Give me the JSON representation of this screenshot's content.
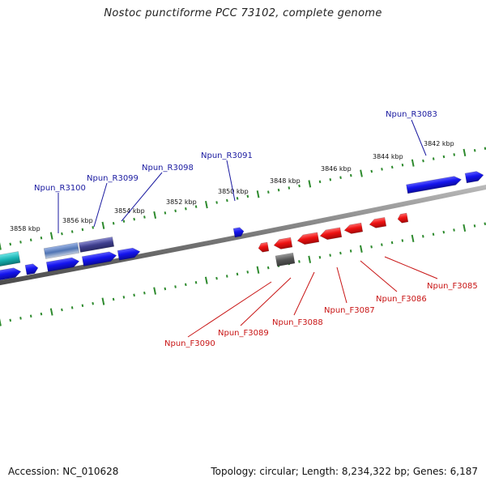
{
  "title": "Nostoc punctiforme PCC 73102, complete genome",
  "footer": {
    "accession": "Accession: NC_010628",
    "summary": "Topology: circular; Length: 8,234,322 bp; Genes: 6,187"
  },
  "colors": {
    "reverse_gene": "#1010e8",
    "forward_gene": "#ee1111",
    "backbone": "#7a7a7a",
    "ticks": "#2d8a2d",
    "reverse_label": "#1a1aa0",
    "forward_label": "#c81414"
  },
  "kbp_ticks": [
    {
      "label": "3842 kbp"
    },
    {
      "label": "3844 kbp"
    },
    {
      "label": "3846 kbp"
    },
    {
      "label": "3848 kbp"
    },
    {
      "label": "3850 kbp"
    },
    {
      "label": "3852 kbp"
    },
    {
      "label": "3854 kbp"
    },
    {
      "label": "3856 kbp"
    },
    {
      "label": "3858 kbp"
    }
  ],
  "reverse_genes": [
    {
      "name": "Npun_R3083"
    },
    {
      "name": "Npun_R3091"
    },
    {
      "name": "Npun_R3098"
    },
    {
      "name": "Npun_R3099"
    },
    {
      "name": "Npun_R3100"
    }
  ],
  "forward_genes": [
    {
      "name": "Npun_F3085"
    },
    {
      "name": "Npun_F3086"
    },
    {
      "name": "Npun_F3087"
    },
    {
      "name": "Npun_F3088"
    },
    {
      "name": "Npun_F3089"
    },
    {
      "name": "Npun_F3090"
    }
  ]
}
